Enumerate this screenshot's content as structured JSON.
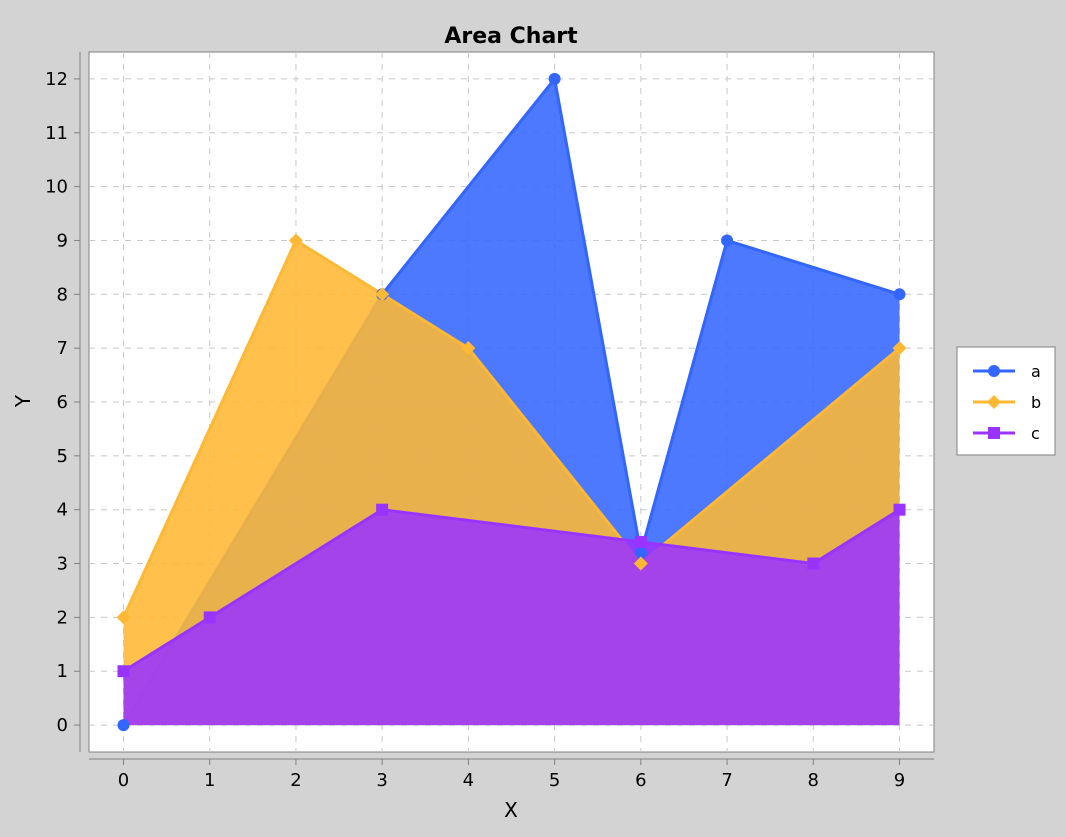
{
  "chart_data": {
    "type": "area",
    "title": "Area Chart",
    "xlabel": "X",
    "ylabel": "Y",
    "x": [
      0,
      1,
      2,
      3,
      4,
      5,
      6,
      7,
      8,
      9
    ],
    "xlim": [
      -0.4,
      9.4
    ],
    "ylim": [
      -0.5,
      12.5
    ],
    "x_ticks": [
      0,
      1,
      2,
      3,
      4,
      5,
      6,
      7,
      8,
      9
    ],
    "y_ticks": [
      0,
      1,
      2,
      3,
      4,
      5,
      6,
      7,
      8,
      9,
      10,
      11,
      12
    ],
    "grid": true,
    "legend_position": "right",
    "series": [
      {
        "name": "a",
        "color": "#3366ff",
        "marker": "circle",
        "points": [
          [
            0,
            0
          ],
          [
            3,
            8
          ],
          [
            5,
            12
          ],
          [
            6,
            3.2
          ],
          [
            7,
            9
          ],
          [
            9,
            8
          ]
        ]
      },
      {
        "name": "b",
        "color": "#ffb833",
        "marker": "diamond",
        "points": [
          [
            0,
            2
          ],
          [
            2,
            9
          ],
          [
            3,
            8
          ],
          [
            4,
            7
          ],
          [
            6,
            3
          ],
          [
            9,
            7
          ]
        ]
      },
      {
        "name": "c",
        "color": "#9933ff",
        "marker": "square",
        "points": [
          [
            0,
            1
          ],
          [
            1,
            2
          ],
          [
            3,
            4
          ],
          [
            6,
            3.4
          ],
          [
            8,
            3
          ],
          [
            9,
            4
          ]
        ]
      }
    ]
  }
}
